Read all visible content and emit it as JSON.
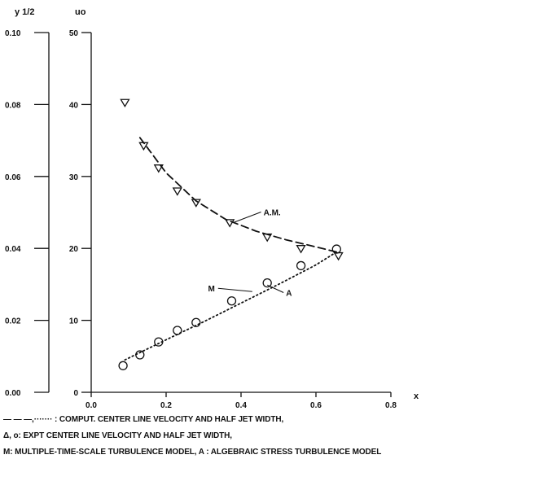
{
  "chart_data": {
    "type": "scatter",
    "title": "",
    "x_axis": {
      "label": "x",
      "range": [
        0.0,
        0.8
      ],
      "ticks": [
        "0.0",
        "0.2",
        "0.4",
        "0.6",
        "0.8"
      ]
    },
    "y_axis_left": {
      "label": "y 1/2",
      "range": [
        0.0,
        0.1
      ],
      "ticks": [
        "0.00",
        "0.02",
        "0.04",
        "0.06",
        "0.08",
        "0.10"
      ]
    },
    "y_axis_right": {
      "label": "uo",
      "range": [
        0,
        50
      ],
      "ticks": [
        "0",
        "10",
        "20",
        "30",
        "40",
        "50"
      ]
    },
    "grid": false,
    "series": [
      {
        "marker": "triangle-down",
        "x": [
          0.09,
          0.14,
          0.18,
          0.23,
          0.28,
          0.37,
          0.47,
          0.56,
          0.66
        ],
        "y_uo": [
          40.3,
          34.3,
          31.2,
          28.0,
          26.4,
          23.6,
          21.6,
          20.0,
          19.0
        ]
      },
      {
        "marker": "circle",
        "x": [
          0.085,
          0.13,
          0.18,
          0.23,
          0.28,
          0.375,
          0.47,
          0.56,
          0.655
        ],
        "y_uo": [
          3.7,
          5.2,
          7.0,
          8.6,
          9.7,
          12.7,
          15.2,
          17.6,
          19.9
        ]
      },
      {
        "line": "dashed",
        "x": [
          0.13,
          0.2,
          0.28,
          0.36,
          0.44,
          0.52,
          0.6,
          0.655
        ],
        "y_uo": [
          35.4,
          30.5,
          26.6,
          24.0,
          22.4,
          21.2,
          20.2,
          19.5
        ]
      },
      {
        "line": "dotted",
        "x": [
          0.09,
          0.2,
          0.3,
          0.4,
          0.5,
          0.6,
          0.655
        ],
        "y_uo": [
          4.5,
          7.3,
          9.8,
          12.4,
          15.0,
          17.7,
          19.5
        ]
      }
    ],
    "annotations": [
      {
        "text": "A.M.",
        "x": 0.46,
        "y_uo": 24.6
      },
      {
        "text": "M",
        "x": 0.33,
        "y_uo": 14.0
      },
      {
        "text": "A",
        "x": 0.52,
        "y_uo": 13.4
      }
    ],
    "caption": [
      "— — —,······· : COMPUT. CENTER LINE VELOCITY AND HALF JET WIDTH,",
      "Δ, o: EXPT CENTER LINE VELOCITY AND HALF JET WIDTH,",
      "M: MULTIPLE-TIME-SCALE TURBULENCE MODEL, A : ALGEBRAIC STRESS TURBULENCE MODEL"
    ]
  },
  "colors": {
    "ink": "#111111",
    "background": "#ffffff"
  }
}
